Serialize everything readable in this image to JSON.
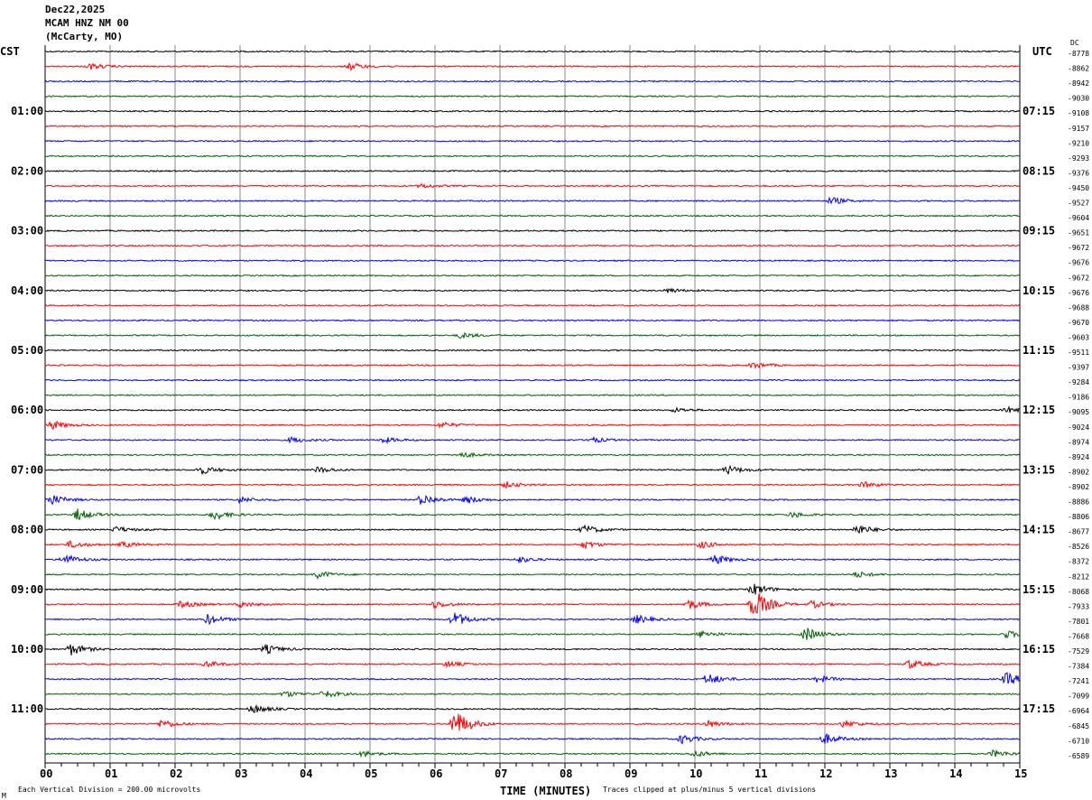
{
  "header": {
    "date": "Dec22,2025",
    "station": "MCAM HNZ NM 00",
    "location": "(McCarty, MO)"
  },
  "chart_data": {
    "type": "line",
    "title": "",
    "xlabel": "TIME (MINUTES)",
    "xlim": [
      0,
      15
    ],
    "x_ticks": [
      "00",
      "01",
      "02",
      "03",
      "04",
      "05",
      "06",
      "07",
      "08",
      "09",
      "10",
      "11",
      "12",
      "13",
      "14",
      "15"
    ],
    "left_axis_label": "CST",
    "right_axis_label": "UTC",
    "dc_label": "DC",
    "left_hour_labels": [
      "01:00",
      "02:00",
      "03:00",
      "04:00",
      "05:00",
      "06:00",
      "07:00",
      "08:00",
      "09:00",
      "10:00",
      "11:00"
    ],
    "right_hour_labels": [
      "07:15",
      "08:15",
      "09:15",
      "10:15",
      "11:15",
      "12:15",
      "13:15",
      "14:15",
      "15:15",
      "16:15",
      "17:15"
    ],
    "trace_colors": [
      "#000000",
      "#ff0000",
      "#0000ff",
      "#006400"
    ],
    "grid": true,
    "dc_offsets": [
      -8778,
      -8862,
      -8942,
      -9030,
      -9108,
      -9157,
      -9210,
      -9293,
      -9376,
      -9450,
      -9527,
      -9604,
      -9651,
      -9672,
      -9676,
      -9672,
      -9676,
      -9688,
      -9670,
      -9603,
      -9511,
      -9397,
      -9284,
      -9186,
      -9095,
      -9024,
      -8974,
      -8924,
      -8902,
      -8902,
      -8886,
      -8806,
      -8677,
      -8526,
      -8372,
      -8212,
      -8068,
      -7933,
      -7801,
      -7668,
      -7529,
      -7384,
      -7241,
      -7099,
      -6964,
      -6845,
      -6710,
      -6589
    ],
    "events": [
      [
        1,
        0.7,
        4
      ],
      [
        1,
        4.7,
        5
      ],
      [
        9,
        5.8,
        3
      ],
      [
        10,
        12.1,
        5
      ],
      [
        16,
        9.6,
        3
      ],
      [
        19,
        6.4,
        4
      ],
      [
        21,
        10.9,
        4
      ],
      [
        24,
        9.7,
        3
      ],
      [
        24,
        14.8,
        4
      ],
      [
        25,
        0.1,
        6
      ],
      [
        25,
        6.1,
        4
      ],
      [
        26,
        3.8,
        4
      ],
      [
        26,
        5.2,
        4
      ],
      [
        26,
        8.4,
        4
      ],
      [
        27,
        6.4,
        4
      ],
      [
        28,
        2.4,
        6
      ],
      [
        28,
        4.2,
        4
      ],
      [
        28,
        10.5,
        6
      ],
      [
        29,
        7.1,
        4
      ],
      [
        29,
        12.6,
        4
      ],
      [
        30,
        0.1,
        7
      ],
      [
        30,
        3.0,
        4
      ],
      [
        30,
        5.8,
        8
      ],
      [
        30,
        6.5,
        5
      ],
      [
        31,
        0.5,
        8
      ],
      [
        31,
        2.6,
        7
      ],
      [
        31,
        11.5,
        4
      ],
      [
        32,
        1.1,
        4
      ],
      [
        32,
        8.3,
        6
      ],
      [
        32,
        12.5,
        7
      ],
      [
        33,
        0.4,
        5
      ],
      [
        33,
        1.2,
        4
      ],
      [
        33,
        8.3,
        5
      ],
      [
        33,
        10.1,
        5
      ],
      [
        34,
        0.3,
        7
      ],
      [
        34,
        7.3,
        4
      ],
      [
        34,
        10.3,
        7
      ],
      [
        35,
        4.2,
        5
      ],
      [
        35,
        12.5,
        4
      ],
      [
        36,
        10.9,
        8
      ],
      [
        37,
        2.1,
        5
      ],
      [
        37,
        3.0,
        4
      ],
      [
        37,
        6.0,
        5
      ],
      [
        37,
        9.9,
        7
      ],
      [
        37,
        10.9,
        22
      ],
      [
        37,
        11.8,
        5
      ],
      [
        38,
        2.5,
        7
      ],
      [
        38,
        6.3,
        10
      ],
      [
        38,
        9.1,
        6
      ],
      [
        39,
        10.1,
        5
      ],
      [
        39,
        11.7,
        10
      ],
      [
        39,
        14.8,
        5
      ],
      [
        40,
        0.4,
        8
      ],
      [
        40,
        3.4,
        6
      ],
      [
        41,
        2.5,
        4
      ],
      [
        41,
        6.2,
        4
      ],
      [
        41,
        13.3,
        6
      ],
      [
        42,
        10.2,
        8
      ],
      [
        42,
        11.9,
        5
      ],
      [
        42,
        14.8,
        9
      ],
      [
        43,
        4.3,
        5
      ],
      [
        43,
        3.7,
        4
      ],
      [
        44,
        3.2,
        6
      ],
      [
        45,
        1.8,
        6
      ],
      [
        45,
        6.3,
        20
      ],
      [
        45,
        10.2,
        5
      ],
      [
        45,
        12.3,
        5
      ],
      [
        46,
        9.8,
        6
      ],
      [
        46,
        12.0,
        7
      ],
      [
        47,
        4.9,
        4
      ],
      [
        47,
        10.0,
        4
      ],
      [
        47,
        14.6,
        5
      ]
    ]
  },
  "footer": {
    "scale": "Each Vertical Division =  200.00 microvolts",
    "clip": "Traces clipped at plus/minus 5 vertical divisions",
    "corner_mark": "M"
  }
}
